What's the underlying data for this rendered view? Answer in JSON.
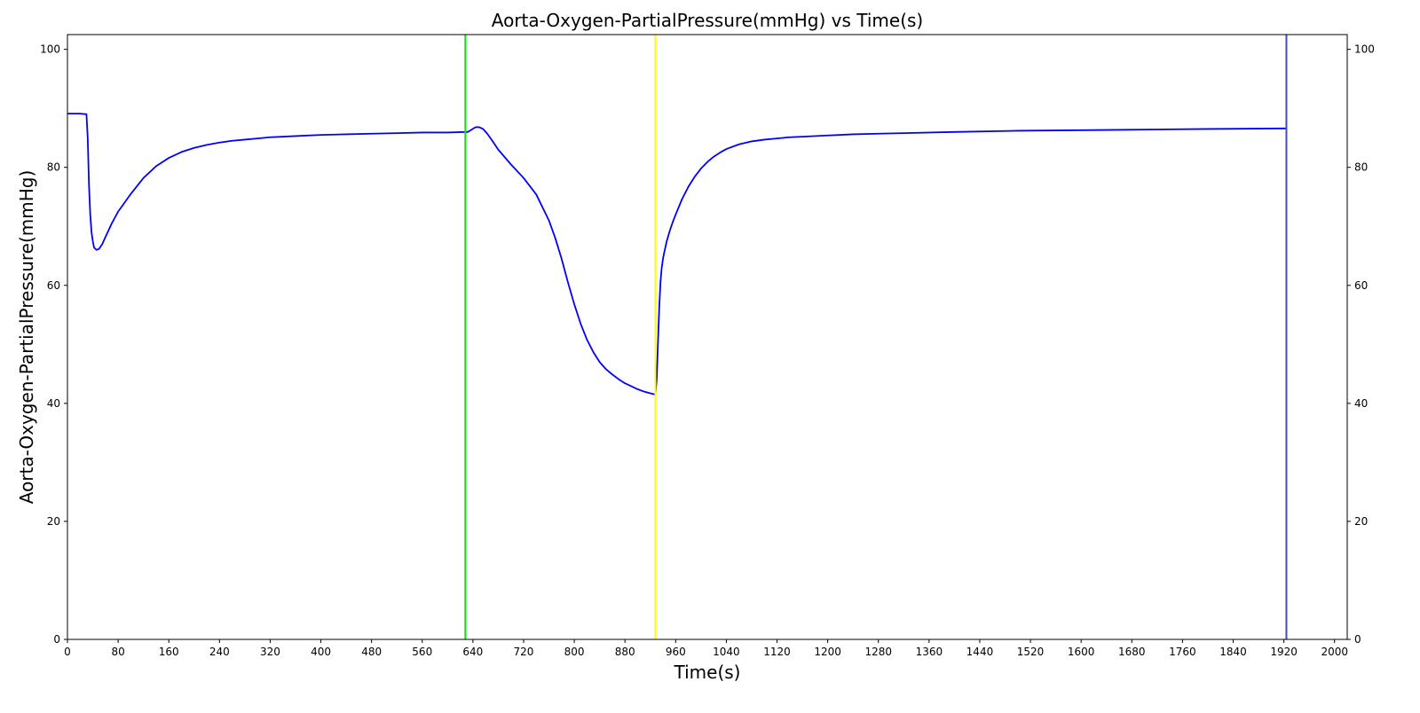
{
  "chart_data": {
    "type": "line",
    "title": "Aorta-Oxygen-PartialPressure(mmHg) vs Time(s)",
    "xlabel": "Time(s)",
    "ylabel": "Aorta-Oxygen-PartialPressure(mmHg)",
    "xlim": [
      0,
      2020
    ],
    "ylim": [
      0,
      102.5
    ],
    "x_ticks": [
      0,
      80,
      160,
      240,
      320,
      400,
      480,
      560,
      640,
      720,
      800,
      880,
      960,
      1040,
      1120,
      1200,
      1280,
      1360,
      1440,
      1520,
      1600,
      1680,
      1760,
      1840,
      1920,
      2000
    ],
    "y_ticks": [
      0,
      20,
      40,
      60,
      80,
      100
    ],
    "y_ticks_right": [
      0,
      20,
      40,
      60,
      80,
      100
    ],
    "grid": false,
    "legend": "none",
    "series": [
      {
        "color": "#0000ff",
        "x": [
          0,
          20,
          30,
          32,
          34,
          36,
          38,
          40,
          42,
          46,
          50,
          55,
          60,
          70,
          80,
          100,
          120,
          140,
          160,
          180,
          200,
          220,
          240,
          260,
          280,
          300,
          320,
          360,
          400,
          440,
          480,
          520,
          560,
          600,
          628,
          632,
          638,
          644,
          650,
          656,
          662,
          670,
          680,
          700,
          720,
          740,
          760,
          770,
          780,
          790,
          800,
          810,
          820,
          830,
          840,
          850,
          860,
          870,
          880,
          890,
          900,
          910,
          920,
          928,
          930,
          932,
          934,
          936,
          938,
          940,
          942,
          946,
          950,
          955,
          960,
          970,
          980,
          990,
          1000,
          1010,
          1020,
          1030,
          1040,
          1060,
          1080,
          1100,
          1120,
          1140,
          1160,
          1200,
          1240,
          1280,
          1320,
          1400,
          1500,
          1600,
          1700,
          1800,
          1924
        ],
        "y": [
          89.1,
          89.1,
          89.0,
          85.0,
          77.0,
          72.0,
          69.0,
          67.5,
          66.4,
          66.0,
          66.2,
          67.0,
          68.2,
          70.5,
          72.5,
          75.5,
          78.2,
          80.2,
          81.6,
          82.6,
          83.3,
          83.8,
          84.2,
          84.5,
          84.7,
          84.9,
          85.1,
          85.3,
          85.5,
          85.6,
          85.7,
          85.8,
          85.9,
          85.9,
          86.0,
          86.0,
          86.4,
          86.8,
          86.8,
          86.5,
          85.8,
          84.6,
          83.0,
          80.5,
          78.2,
          75.4,
          71.0,
          68.0,
          64.5,
          60.5,
          56.8,
          53.5,
          50.8,
          48.7,
          47.0,
          45.8,
          44.9,
          44.1,
          43.4,
          42.9,
          42.4,
          42.0,
          41.7,
          41.5,
          44.0,
          50.0,
          56.0,
          60.5,
          63.0,
          64.5,
          65.6,
          67.5,
          69.0,
          70.6,
          72.0,
          74.6,
          76.7,
          78.4,
          79.8,
          80.9,
          81.8,
          82.5,
          83.1,
          83.9,
          84.4,
          84.7,
          84.9,
          85.1,
          85.2,
          85.4,
          85.6,
          85.7,
          85.8,
          86.0,
          86.2,
          86.3,
          86.4,
          86.5,
          86.6
        ]
      }
    ],
    "vertical_lines": [
      {
        "x": 628,
        "color": "#00ee00"
      },
      {
        "x": 928,
        "color": "#ffff00"
      },
      {
        "x": 1924,
        "color": "#4444dd"
      }
    ]
  }
}
